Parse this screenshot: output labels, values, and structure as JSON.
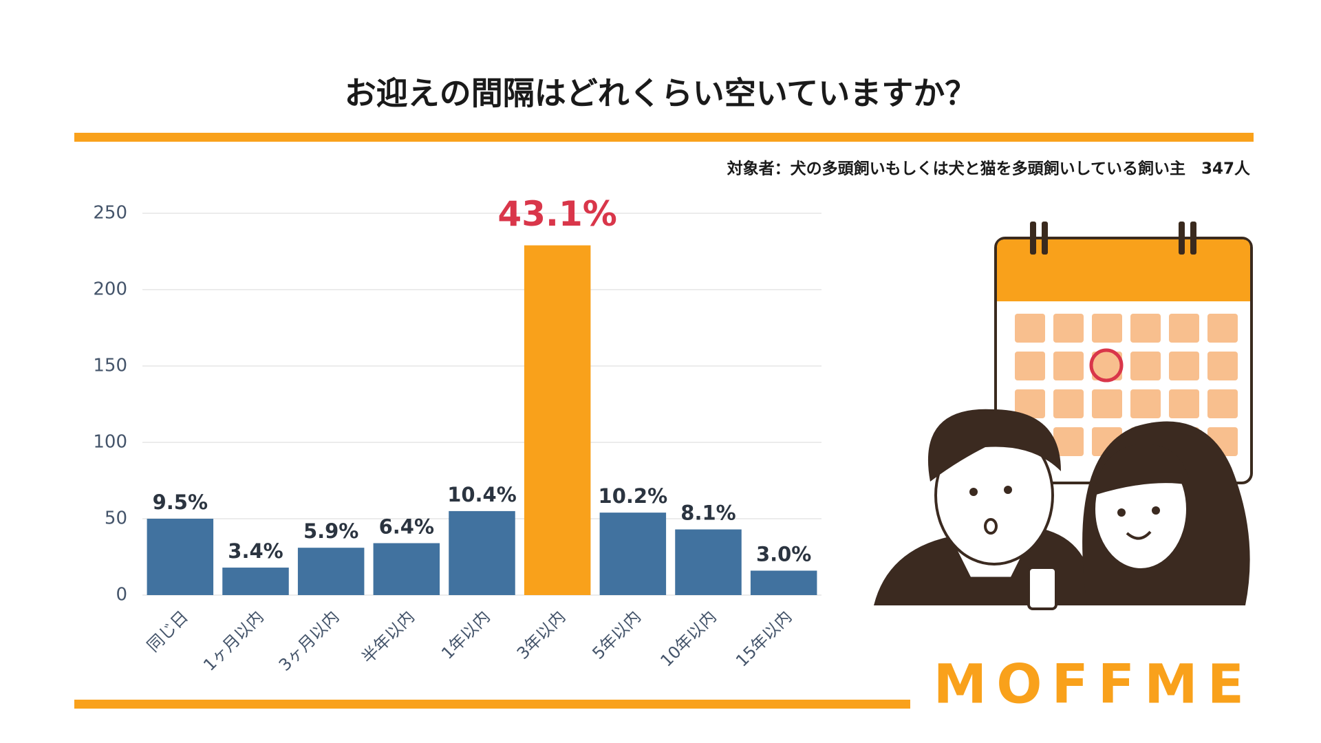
{
  "chart_data": {
    "type": "bar",
    "title": "お迎えの間隔はどれくらい空いていますか？",
    "subtitle": "対象者：犬の多頭飼いもしくは犬と猫を多頭飼いしている飼い主　347人",
    "categories": [
      "同じ日",
      "1ヶ月以内",
      "3ヶ月以内",
      "半年以内",
      "1年以内",
      "3年以内",
      "5年以内",
      "10年以内",
      "15年以内"
    ],
    "values": [
      50,
      18,
      31,
      34,
      55,
      229,
      54,
      43,
      16
    ],
    "shares": [
      {
        "value": 9.5,
        "label": "9.5%"
      },
      {
        "value": 3.4,
        "label": "3.4%"
      },
      {
        "value": 5.9,
        "label": "5.9%"
      },
      {
        "value": 6.4,
        "label": "6.4%"
      },
      {
        "value": 10.4,
        "label": "10.4%"
      },
      {
        "value": 43.1,
        "label": "43.1%"
      },
      {
        "value": 10.2,
        "label": "10.2%"
      },
      {
        "value": 8.1,
        "label": "8.1%"
      },
      {
        "value": 3.0,
        "label": "3.0%"
      }
    ],
    "colors": [
      "#41729f",
      "#41729f",
      "#41729f",
      "#41729f",
      "#41729f",
      "#f9a11b",
      "#41729f",
      "#41729f",
      "#41729f"
    ],
    "label_colors": [
      "#2b3440",
      "#2b3440",
      "#2b3440",
      "#2b3440",
      "#2b3440",
      "#d9364a",
      "#2b3440",
      "#2b3440",
      "#2b3440"
    ],
    "ylim": [
      0,
      250
    ],
    "yticks": [
      0,
      50,
      100,
      150,
      200,
      250
    ],
    "grid": true
  },
  "brand": "MOFFME"
}
